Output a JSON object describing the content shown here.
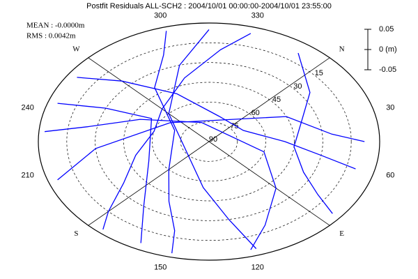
{
  "chart_data": {
    "type": "skyplot",
    "title": "Postfit Residuals ALL-SCH2 : 2004/10/01 00:00:00-2004/10/01 23:55:00",
    "annotations": [
      "MEAN : -0.0000m",
      "RMS : 0.0042m"
    ],
    "color": "#0000ff",
    "directions": [
      {
        "label": "N",
        "azimuth": 0
      },
      {
        "label": "E",
        "azimuth": 90
      },
      {
        "label": "S",
        "azimuth": 180
      },
      {
        "label": "W",
        "azimuth": 270
      }
    ],
    "azimuth_ticks": [
      30,
      60,
      120,
      150,
      210,
      240,
      300,
      330
    ],
    "elevation_ticks": [
      15,
      30,
      45,
      60,
      75,
      90
    ],
    "scale_lim": [
      -0.05,
      0.05
    ],
    "scale_ticks": [
      0.05,
      {
        "value": 0,
        "label": "0 (m)"
      },
      -0.05
    ],
    "tracks": [
      {
        "azimuth": [
          330,
          320,
          300,
          270,
          240,
          210,
          190,
          180,
          175
        ],
        "elevation": [
          5,
          20,
          40,
          55,
          60,
          50,
          35,
          15,
          3
        ]
      },
      {
        "azimuth": [
          350,
          10,
          30,
          50,
          70,
          80,
          85
        ],
        "elevation": [
          8,
          25,
          40,
          45,
          35,
          20,
          5
        ]
      },
      {
        "azimuth": [
          260,
          270,
          290,
          330,
          20,
          45,
          55,
          60
        ],
        "elevation": [
          5,
          25,
          50,
          70,
          70,
          50,
          30,
          10
        ]
      },
      {
        "azimuth": [
          230,
          235,
          250,
          300,
          60,
          90,
          110,
          120
        ],
        "elevation": [
          3,
          25,
          50,
          75,
          60,
          40,
          20,
          5
        ]
      },
      {
        "azimuth": [
          300,
          295,
          280,
          250,
          180,
          160,
          150,
          148
        ],
        "elevation": [
          3,
          20,
          40,
          70,
          60,
          40,
          20,
          3
        ]
      },
      {
        "azimuth": [
          205,
          220,
          260,
          20,
          40,
          45
        ],
        "elevation": [
          5,
          30,
          65,
          45,
          25,
          8
        ]
      },
      {
        "azimuth": [
          245,
          250,
          255,
          200,
          170,
          160
        ],
        "elevation": [
          5,
          30,
          55,
          55,
          30,
          5
        ]
      },
      {
        "azimuth": [
          315,
          300,
          270,
          140,
          125,
          118
        ],
        "elevation": [
          5,
          30,
          60,
          55,
          30,
          5
        ]
      }
    ]
  }
}
